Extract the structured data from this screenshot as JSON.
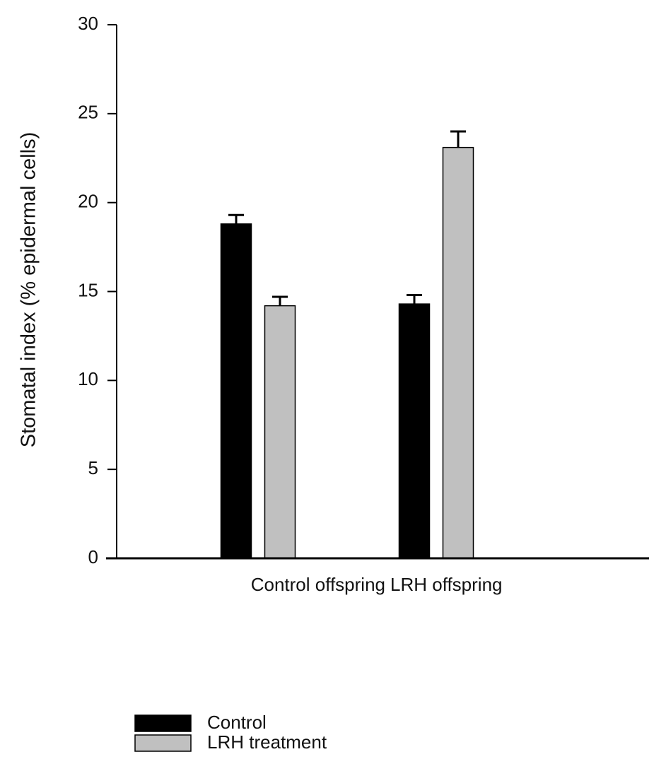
{
  "chart_data": {
    "type": "bar",
    "y_label": "Stomatal index (% epidermal cells)",
    "categories": [
      "Control offspring",
      "LRH offspring"
    ],
    "series": [
      {
        "name": "Control",
        "color": "#000000",
        "values": [
          18.8,
          14.3
        ],
        "errors": [
          0.5,
          0.5
        ]
      },
      {
        "name": "LRH treatment",
        "color": "#c0c0c0",
        "values": [
          14.2,
          23.1
        ],
        "errors": [
          0.5,
          0.9
        ]
      }
    ],
    "ylim": [
      0,
      30
    ],
    "yticks": [
      0,
      5,
      10,
      15,
      20,
      25,
      30
    ],
    "grid": false,
    "legend": "bottom-left"
  }
}
